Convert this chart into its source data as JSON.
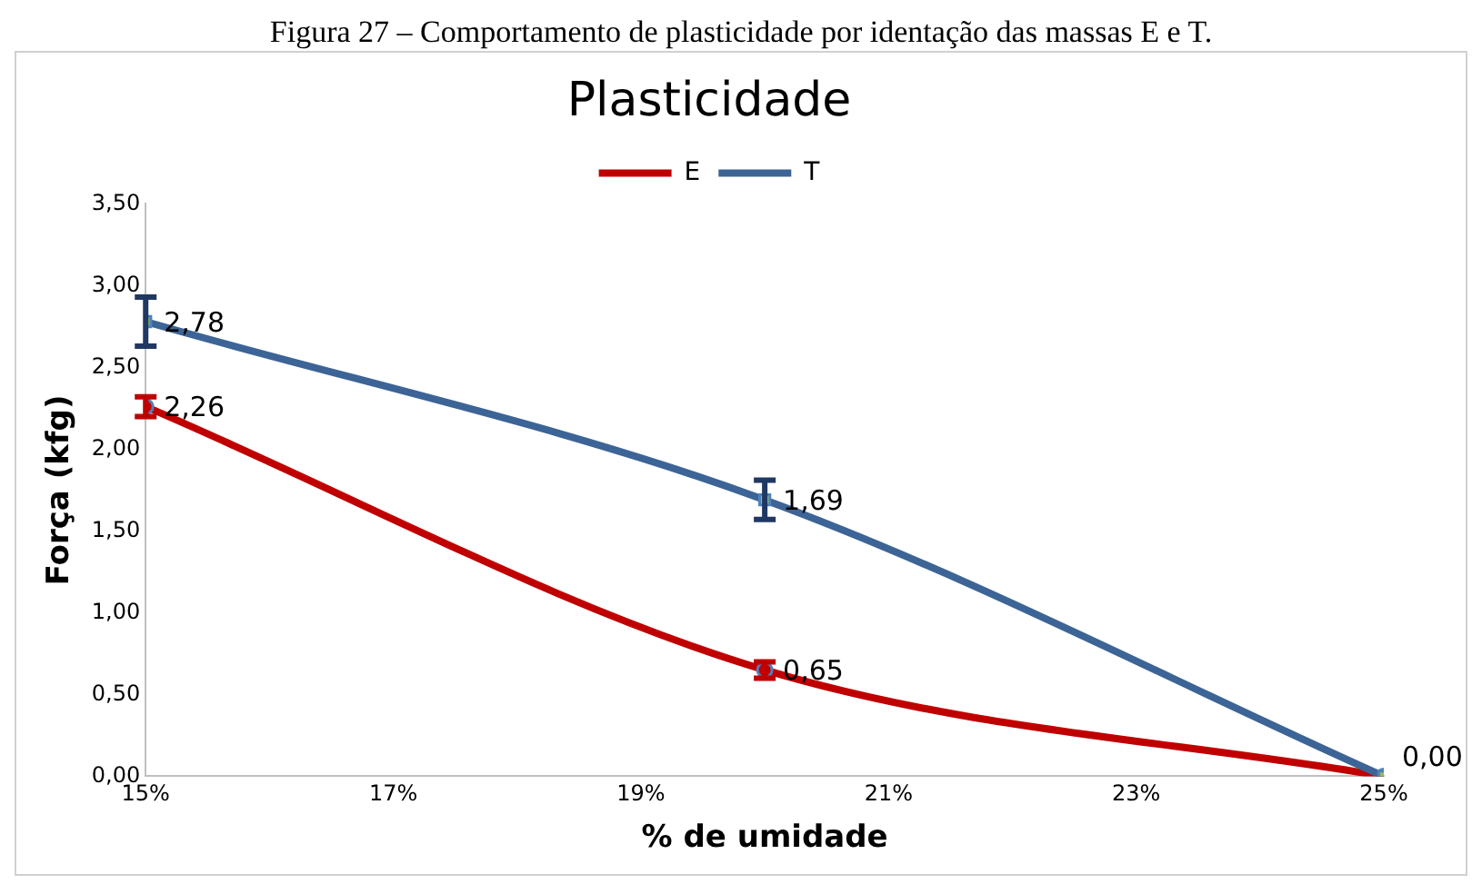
{
  "chart_data": {
    "type": "line",
    "title": "Plasticidade",
    "xlabel": "% de umidade",
    "ylabel": "Força (kfg)",
    "annotations": [
      "Figura 27 – Comportamento de plasticidade por identação das massas E e T."
    ],
    "x": [
      15,
      20,
      25
    ],
    "series": [
      {
        "name": "E",
        "color": "#c00000",
        "marker": "circle",
        "values": [
          2.26,
          0.65,
          0.0
        ],
        "errors": [
          0.06,
          0.05,
          null
        ],
        "value_labels": [
          "2,26",
          "0,65",
          null
        ]
      },
      {
        "name": "T",
        "color": "#3c6496",
        "marker": "square",
        "values": [
          2.78,
          1.69,
          0.0
        ],
        "errors": [
          0.15,
          0.12,
          null
        ],
        "value_labels": [
          "2,78",
          "1,69",
          "0,00"
        ]
      }
    ],
    "xlim": [
      15,
      25
    ],
    "xticks": [
      {
        "value": 15,
        "label": "15%"
      },
      {
        "value": 17,
        "label": "17%"
      },
      {
        "value": 19,
        "label": "19%"
      },
      {
        "value": 21,
        "label": "21%"
      },
      {
        "value": 23,
        "label": "23%"
      },
      {
        "value": 25,
        "label": "25%"
      }
    ],
    "ylim": [
      0,
      3.5
    ],
    "yticks": [
      {
        "value": 0,
        "label": "0,00"
      },
      {
        "value": 0.5,
        "label": "0,50"
      },
      {
        "value": 1,
        "label": "1,00"
      },
      {
        "value": 1.5,
        "label": "1,50"
      },
      {
        "value": 2,
        "label": "2,00"
      },
      {
        "value": 2.5,
        "label": "2,50"
      },
      {
        "value": 3,
        "label": "3,00"
      },
      {
        "value": 3.5,
        "label": "3,50"
      }
    ],
    "legend": "top"
  }
}
